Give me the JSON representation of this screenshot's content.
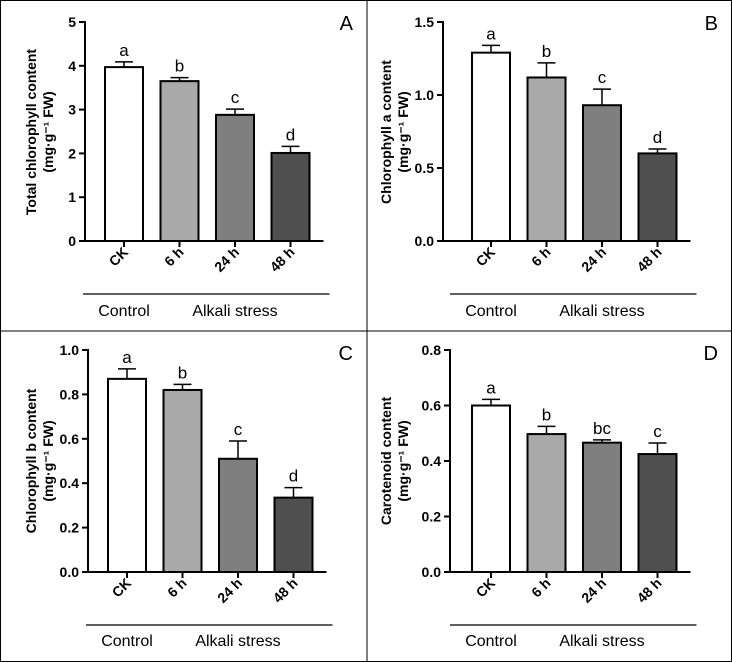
{
  "figure": {
    "groups": [
      "Control",
      "Alkali stress"
    ],
    "colors": {
      "CK": "#ffffff",
      "6 h": "#a9a9a9",
      "24 h": "#7f7f7f",
      "48 h": "#4f4f4f",
      "axis": "#000000"
    }
  },
  "chart_data": [
    {
      "panel": "A",
      "type": "bar",
      "ylabel_line1": "Total chlorophyll content",
      "ylabel_line2": "(mg·g⁻¹ FW)",
      "categories": [
        "CK",
        "6 h",
        "24 h",
        "48 h"
      ],
      "values": [
        3.97,
        3.65,
        2.88,
        2.01
      ],
      "errors": [
        0.12,
        0.08,
        0.13,
        0.15
      ],
      "significance": [
        "a",
        "b",
        "c",
        "d"
      ],
      "ylim": [
        0,
        5
      ],
      "yticks": [
        "0",
        "1",
        "2",
        "3",
        "4",
        "5"
      ]
    },
    {
      "panel": "B",
      "type": "bar",
      "ylabel_line1": "Chlorophyll a content",
      "ylabel_line2": "(mg·g⁻¹ FW)",
      "categories": [
        "CK",
        "6 h",
        "24 h",
        "48 h"
      ],
      "values": [
        1.29,
        1.12,
        0.93,
        0.6
      ],
      "errors": [
        0.05,
        0.1,
        0.11,
        0.03
      ],
      "significance": [
        "a",
        "b",
        "c",
        "d"
      ],
      "ylim": [
        0,
        1.5
      ],
      "yticks": [
        "0.0",
        "0.5",
        "1.0",
        "1.5"
      ]
    },
    {
      "panel": "C",
      "type": "bar",
      "ylabel_line1": "Chlorophyll b content",
      "ylabel_line2": "(mg·g⁻¹ FW)",
      "categories": [
        "CK",
        "6 h",
        "24 h",
        "48 h"
      ],
      "values": [
        0.87,
        0.82,
        0.51,
        0.335
      ],
      "errors": [
        0.045,
        0.025,
        0.08,
        0.045
      ],
      "significance": [
        "a",
        "b",
        "c",
        "d"
      ],
      "ylim": [
        0,
        1.0
      ],
      "yticks": [
        "0.0",
        "0.2",
        "0.4",
        "0.6",
        "0.8",
        "1.0"
      ]
    },
    {
      "panel": "D",
      "type": "bar",
      "ylabel_line1": "Carotenoid content",
      "ylabel_line2": "(mg·g⁻¹ FW)",
      "categories": [
        "CK",
        "6 h",
        "24 h",
        "48 h"
      ],
      "values": [
        0.6,
        0.497,
        0.466,
        0.425
      ],
      "errors": [
        0.022,
        0.028,
        0.01,
        0.04
      ],
      "significance": [
        "a",
        "b",
        "bc",
        "c"
      ],
      "ylim": [
        0,
        0.8
      ],
      "yticks": [
        "0.0",
        "0.2",
        "0.4",
        "0.6",
        "0.8"
      ]
    }
  ]
}
